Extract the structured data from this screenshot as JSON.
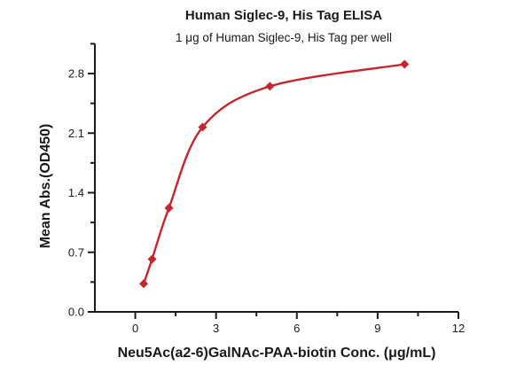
{
  "chart": {
    "title": "Human Siglec-9, His Tag ELISA",
    "subtitle": "1 μg of Human Siglec-9, His Tag per well",
    "xlabel": "Neu5Ac(a2-6)GalNAc-PAA-biotin Conc. (μg/mL)",
    "ylabel": "Mean Abs.(OD450)"
  },
  "chart_data": {
    "type": "scatter",
    "title": "Human Siglec-9, His Tag ELISA",
    "subtitle": "1 μg of Human Siglec-9, His Tag per well",
    "xlabel": "Neu5Ac(a2-6)GalNAc-PAA-biotin Conc. (μg/mL)",
    "ylabel": "Mean Abs.(OD450)",
    "x": [
      0.3125,
      0.625,
      1.25,
      2.5,
      5,
      10
    ],
    "y": [
      0.33,
      0.62,
      1.22,
      2.17,
      2.65,
      2.91
    ],
    "fit_curve": "smooth saturation (4PL-style) curve through points, from first to last point",
    "marker": "diamond",
    "marker_size_px": 10,
    "x_axis": {
      "min": -1.5,
      "max": 12,
      "major_ticks": [
        0,
        3,
        6,
        9,
        12
      ],
      "tick_labels": [
        "0",
        "3",
        "6",
        "9",
        "12"
      ],
      "minor_tick_step": 1.5,
      "ticks_direction": "out"
    },
    "y_axis": {
      "min": 0,
      "max": 3.15,
      "major_ticks": [
        0,
        0.7,
        1.4,
        2.1,
        2.8
      ],
      "tick_labels": [
        "0.0",
        "0.7",
        "1.4",
        "2.1",
        "2.8"
      ],
      "minor_tick_step": 0.35,
      "ticks_direction": "out"
    },
    "grid": false,
    "legend": false,
    "colors": {
      "line": "#c4262d",
      "marker": "#c4262d",
      "axis": "#1a1a1a",
      "text": "#1a1a1a",
      "background": "#ffffff"
    }
  }
}
